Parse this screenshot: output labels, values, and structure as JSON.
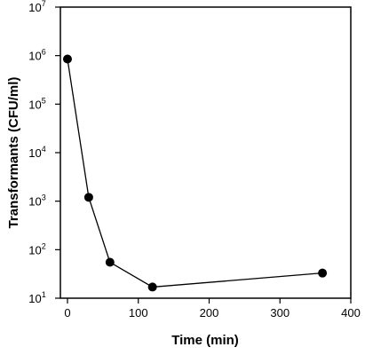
{
  "chart_data": {
    "type": "scatter",
    "title": "",
    "xlabel": "Time (min)",
    "ylabel": "Transformants (CFU/ml)",
    "xlim": [
      -10,
      400
    ],
    "ylim": [
      10,
      10000000
    ],
    "yscale": "log",
    "grid": false,
    "connect_points": true,
    "x_ticks": [
      "0",
      "100",
      "200",
      "300",
      "400"
    ],
    "x_tick_values": [
      0,
      100,
      200,
      300,
      400
    ],
    "y_tick_values": [
      10,
      100,
      1000,
      10000,
      100000,
      1000000,
      10000000
    ],
    "y_tick_labels": [
      {
        "base": "10",
        "exp": "1"
      },
      {
        "base": "10",
        "exp": "2"
      },
      {
        "base": "10",
        "exp": "3"
      },
      {
        "base": "10",
        "exp": "4"
      },
      {
        "base": "10",
        "exp": "5"
      },
      {
        "base": "10",
        "exp": "6"
      },
      {
        "base": "10",
        "exp": "7"
      }
    ],
    "series": [
      {
        "x": [
          0,
          30,
          60,
          120,
          360
        ],
        "y": [
          850000,
          1200,
          55,
          17,
          33
        ]
      }
    ],
    "colors": {
      "line": "#000000",
      "marker": "#000000",
      "axis": "#000000"
    }
  }
}
